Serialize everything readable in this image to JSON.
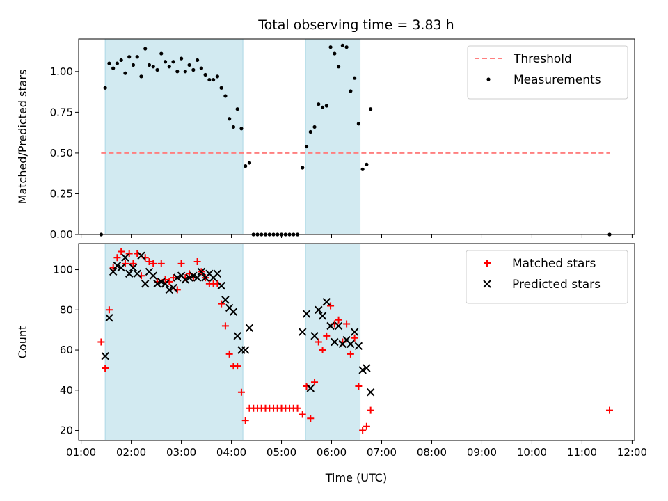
{
  "chart_data": {
    "title": "Total observing time = 3.83 h",
    "xlabel": "Time (UTC)",
    "x_unit": "hours UTC",
    "xlim": [
      0.95,
      12.05
    ],
    "x_ticks": [
      {
        "value": 1,
        "label": "01:00"
      },
      {
        "value": 2,
        "label": "02:00"
      },
      {
        "value": 3,
        "label": "03:00"
      },
      {
        "value": 4,
        "label": "04:00"
      },
      {
        "value": 5,
        "label": "05:00"
      },
      {
        "value": 6,
        "label": "06:00"
      },
      {
        "value": 7,
        "label": "07:00"
      },
      {
        "value": 8,
        "label": "08:00"
      },
      {
        "value": 9,
        "label": "09:00"
      },
      {
        "value": 10,
        "label": "10:00"
      },
      {
        "value": 11,
        "label": "11:00"
      },
      {
        "value": 12,
        "label": "12:00"
      }
    ],
    "shaded_intervals": [
      [
        1.48,
        4.23
      ],
      [
        5.48,
        6.57
      ]
    ],
    "shade_color": "#add8e6",
    "panels": [
      {
        "type": "scatter",
        "ylabel": "Matched/Predicted stars",
        "ylim": [
          0,
          1.2
        ],
        "y_ticks": [
          {
            "value": 0,
            "label": "0.00"
          },
          {
            "value": 0.25,
            "label": "0.25"
          },
          {
            "value": 0.5,
            "label": "0.50"
          },
          {
            "value": 0.75,
            "label": "0.75"
          },
          {
            "value": 1.0,
            "label": "1.00"
          }
        ],
        "legend_position": "upper-right",
        "threshold": {
          "name": "Threshold",
          "y": 0.5,
          "x_range": [
            1.4,
            11.55
          ],
          "color": "#ff7f7f"
        },
        "series": [
          {
            "name": "Measurements",
            "marker": "dot",
            "color": "#000000",
            "points": [
              [
                1.4,
                0.0
              ],
              [
                1.48,
                0.9
              ],
              [
                1.56,
                1.05
              ],
              [
                1.64,
                1.02
              ],
              [
                1.72,
                1.05
              ],
              [
                1.8,
                1.07
              ],
              [
                1.88,
                0.99
              ],
              [
                1.96,
                1.09
              ],
              [
                2.04,
                1.04
              ],
              [
                2.12,
                1.09
              ],
              [
                2.2,
                0.97
              ],
              [
                2.28,
                1.14
              ],
              [
                2.36,
                1.04
              ],
              [
                2.44,
                1.03
              ],
              [
                2.52,
                1.01
              ],
              [
                2.6,
                1.11
              ],
              [
                2.68,
                1.06
              ],
              [
                2.76,
                1.03
              ],
              [
                2.84,
                1.06
              ],
              [
                2.92,
                1.0
              ],
              [
                3.0,
                1.08
              ],
              [
                3.08,
                1.0
              ],
              [
                3.16,
                1.04
              ],
              [
                3.24,
                1.01
              ],
              [
                3.32,
                1.07
              ],
              [
                3.4,
                1.02
              ],
              [
                3.48,
                0.98
              ],
              [
                3.56,
                0.95
              ],
              [
                3.64,
                0.95
              ],
              [
                3.72,
                0.97
              ],
              [
                3.8,
                0.9
              ],
              [
                3.88,
                0.85
              ],
              [
                3.96,
                0.71
              ],
              [
                4.04,
                0.66
              ],
              [
                4.12,
                0.77
              ],
              [
                4.2,
                0.65
              ],
              [
                4.28,
                0.42
              ],
              [
                4.36,
                0.44
              ],
              [
                4.44,
                0.0
              ],
              [
                4.52,
                0.0
              ],
              [
                4.6,
                0.0
              ],
              [
                4.68,
                0.0
              ],
              [
                4.76,
                0.0
              ],
              [
                4.84,
                0.0
              ],
              [
                4.92,
                0.0
              ],
              [
                5.0,
                0.0
              ],
              [
                5.08,
                0.0
              ],
              [
                5.16,
                0.0
              ],
              [
                5.24,
                0.0
              ],
              [
                5.32,
                0.0
              ],
              [
                5.42,
                0.41
              ],
              [
                5.5,
                0.54
              ],
              [
                5.58,
                0.63
              ],
              [
                5.66,
                0.66
              ],
              [
                5.74,
                0.8
              ],
              [
                5.82,
                0.78
              ],
              [
                5.9,
                0.79
              ],
              [
                5.98,
                1.15
              ],
              [
                6.06,
                1.11
              ],
              [
                6.14,
                1.03
              ],
              [
                6.22,
                1.16
              ],
              [
                6.3,
                1.15
              ],
              [
                6.38,
                0.88
              ],
              [
                6.46,
                0.96
              ],
              [
                6.54,
                0.68
              ],
              [
                6.62,
                0.4
              ],
              [
                6.7,
                0.43
              ],
              [
                6.78,
                0.77
              ],
              [
                11.55,
                0.0
              ]
            ]
          }
        ]
      },
      {
        "type": "scatter",
        "ylabel": "Count",
        "ylim": [
          15,
          113
        ],
        "y_ticks": [
          {
            "value": 20,
            "label": "20"
          },
          {
            "value": 40,
            "label": "40"
          },
          {
            "value": 60,
            "label": "60"
          },
          {
            "value": 80,
            "label": "80"
          },
          {
            "value": 100,
            "label": "100"
          }
        ],
        "legend_position": "upper-right",
        "series": [
          {
            "name": "Matched stars",
            "marker": "plus",
            "color": "#ff0000",
            "points": [
              [
                1.4,
                64
              ],
              [
                1.48,
                51
              ],
              [
                1.56,
                80
              ],
              [
                1.64,
                101
              ],
              [
                1.72,
                106
              ],
              [
                1.8,
                109
              ],
              [
                1.88,
                103
              ],
              [
                1.96,
                108
              ],
              [
                2.04,
                103
              ],
              [
                2.12,
                108
              ],
              [
                2.2,
                97
              ],
              [
                2.28,
                106
              ],
              [
                2.36,
                104
              ],
              [
                2.44,
                103
              ],
              [
                2.52,
                94
              ],
              [
                2.6,
                103
              ],
              [
                2.68,
                95
              ],
              [
                2.76,
                94
              ],
              [
                2.84,
                96
              ],
              [
                2.92,
                90
              ],
              [
                3.0,
                103
              ],
              [
                3.08,
                96
              ],
              [
                3.16,
                98
              ],
              [
                3.24,
                96
              ],
              [
                3.32,
                104
              ],
              [
                3.4,
                99
              ],
              [
                3.48,
                96
              ],
              [
                3.56,
                93
              ],
              [
                3.64,
                93
              ],
              [
                3.72,
                93
              ],
              [
                3.8,
                83
              ],
              [
                3.88,
                72
              ],
              [
                3.96,
                58
              ],
              [
                4.04,
                52
              ],
              [
                4.12,
                52
              ],
              [
                4.2,
                39
              ],
              [
                4.28,
                25
              ],
              [
                4.36,
                31
              ],
              [
                4.44,
                31
              ],
              [
                4.52,
                31
              ],
              [
                4.6,
                31
              ],
              [
                4.68,
                31
              ],
              [
                4.76,
                31
              ],
              [
                4.84,
                31
              ],
              [
                4.92,
                31
              ],
              [
                5.0,
                31
              ],
              [
                5.08,
                31
              ],
              [
                5.16,
                31
              ],
              [
                5.24,
                31
              ],
              [
                5.32,
                31
              ],
              [
                5.42,
                28
              ],
              [
                5.5,
                42
              ],
              [
                5.58,
                26
              ],
              [
                5.66,
                44
              ],
              [
                5.74,
                64
              ],
              [
                5.82,
                60
              ],
              [
                5.9,
                67
              ],
              [
                5.98,
                82
              ],
              [
                6.06,
                73
              ],
              [
                6.14,
                75
              ],
              [
                6.22,
                64
              ],
              [
                6.3,
                73
              ],
              [
                6.38,
                58
              ],
              [
                6.46,
                66
              ],
              [
                6.54,
                42
              ],
              [
                6.62,
                20
              ],
              [
                6.7,
                22
              ],
              [
                6.78,
                30
              ],
              [
                11.55,
                30
              ]
            ]
          },
          {
            "name": "Predicted stars",
            "marker": "x",
            "color": "#000000",
            "points": [
              [
                1.48,
                57
              ],
              [
                1.56,
                76
              ],
              [
                1.64,
                99
              ],
              [
                1.72,
                102
              ],
              [
                1.8,
                101
              ],
              [
                1.88,
                106
              ],
              [
                1.96,
                98
              ],
              [
                2.04,
                101
              ],
              [
                2.12,
                98
              ],
              [
                2.2,
                107
              ],
              [
                2.28,
                93
              ],
              [
                2.36,
                99
              ],
              [
                2.44,
                97
              ],
              [
                2.52,
                93
              ],
              [
                2.6,
                94
              ],
              [
                2.68,
                93
              ],
              [
                2.76,
                90
              ],
              [
                2.84,
                91
              ],
              [
                2.92,
                96
              ],
              [
                3.0,
                97
              ],
              [
                3.08,
                95
              ],
              [
                3.16,
                96
              ],
              [
                3.24,
                97
              ],
              [
                3.32,
                96
              ],
              [
                3.4,
                99
              ],
              [
                3.48,
                96
              ],
              [
                3.56,
                98
              ],
              [
                3.64,
                96
              ],
              [
                3.72,
                98
              ],
              [
                3.8,
                92
              ],
              [
                3.88,
                85
              ],
              [
                3.96,
                81
              ],
              [
                4.04,
                79
              ],
              [
                4.12,
                67
              ],
              [
                4.2,
                60
              ],
              [
                4.28,
                60
              ],
              [
                4.36,
                71
              ],
              [
                5.42,
                69
              ],
              [
                5.5,
                78
              ],
              [
                5.58,
                41
              ],
              [
                5.66,
                67
              ],
              [
                5.74,
                80
              ],
              [
                5.82,
                77
              ],
              [
                5.9,
                84
              ],
              [
                5.98,
                72
              ],
              [
                6.06,
                64
              ],
              [
                6.14,
                72
              ],
              [
                6.22,
                63
              ],
              [
                6.3,
                65
              ],
              [
                6.38,
                63
              ],
              [
                6.46,
                69
              ],
              [
                6.54,
                62
              ],
              [
                6.62,
                50
              ],
              [
                6.7,
                51
              ],
              [
                6.78,
                39
              ]
            ]
          }
        ]
      }
    ]
  }
}
